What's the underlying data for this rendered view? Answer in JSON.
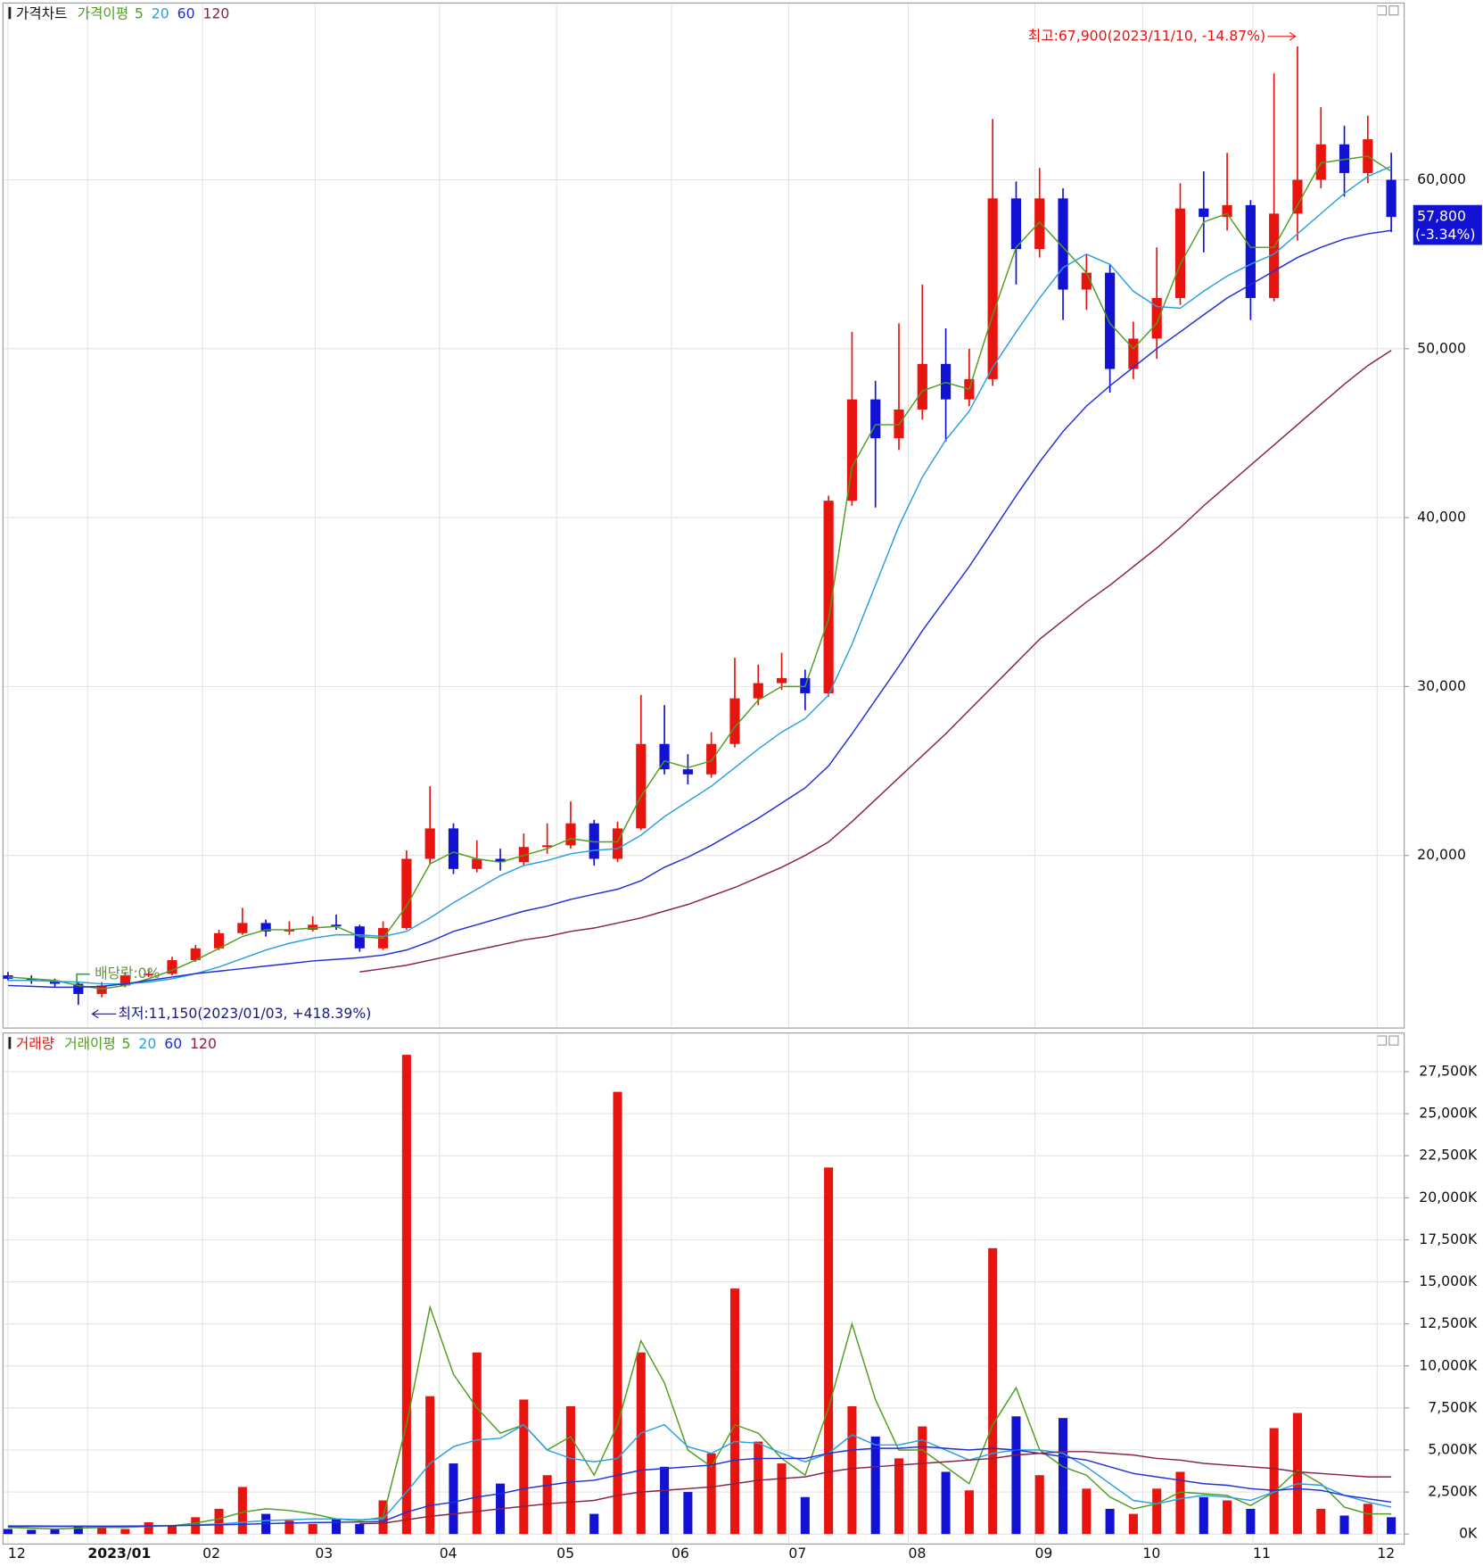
{
  "chart_data": [
    {
      "type": "candlestick",
      "title": "가격차트",
      "ma_title": "가격이평",
      "categories": [
        null,
        null,
        null,
        null,
        null,
        null,
        null,
        null,
        null,
        null,
        null,
        null,
        null,
        null,
        null,
        null,
        null,
        null,
        null,
        null,
        null,
        null,
        null,
        null,
        null,
        null,
        null,
        null,
        null,
        null,
        null,
        null,
        null,
        null,
        null,
        null,
        null,
        null,
        null,
        null,
        null,
        null,
        null,
        null,
        null,
        null,
        null,
        null,
        null,
        null,
        null,
        null,
        null,
        null,
        null,
        null,
        null,
        null,
        null,
        null
      ],
      "xticks": [
        {
          "value": 0,
          "label": "12"
        },
        {
          "value": 3.4,
          "label": "2023/01"
        },
        {
          "value": 8.3,
          "label": "02"
        },
        {
          "value": 13.1,
          "label": "03"
        },
        {
          "value": 18.4,
          "label": "04"
        },
        {
          "value": 23.4,
          "label": "05"
        },
        {
          "value": 28.3,
          "label": "06"
        },
        {
          "value": 33.3,
          "label": "07"
        },
        {
          "value": 38.4,
          "label": "08"
        },
        {
          "value": 43.8,
          "label": "09"
        },
        {
          "value": 48.4,
          "label": "10"
        },
        {
          "value": 53.1,
          "label": "11"
        },
        {
          "value": 58.4,
          "label": "12"
        }
      ],
      "ylim": [
        9900,
        70350
      ],
      "yticks": [
        {
          "value": 20000,
          "label": "20,000"
        },
        {
          "value": 30000,
          "label": "30,000"
        },
        {
          "value": 40000,
          "label": "40,000"
        },
        {
          "value": 50000,
          "label": "50,000"
        },
        {
          "value": 60000,
          "label": "60,000"
        }
      ],
      "grid": true,
      "up_color": "#e8140f",
      "down_color": "#1212d4",
      "open": [
        12900,
        12700,
        12600,
        12400,
        11800,
        12300,
        12900,
        13000,
        13800,
        14500,
        15400,
        16000,
        15500,
        15600,
        15900,
        15800,
        14500,
        15700,
        19800,
        21600,
        19200,
        19800,
        19600,
        20500,
        20600,
        21900,
        19800,
        21600,
        26600,
        25100,
        24800,
        26600,
        29300,
        30200,
        30500,
        29600,
        41000,
        47000,
        44700,
        46400,
        49100,
        47000,
        48200,
        58900,
        55900,
        58900,
        53500,
        54500,
        48800,
        50600,
        53000,
        58300,
        57800,
        58500,
        53000,
        58000,
        60000,
        62100,
        60400,
        60000
      ],
      "high": [
        13100,
        12900,
        12700,
        12500,
        12500,
        13100,
        13300,
        14000,
        14700,
        15600,
        16900,
        16200,
        16100,
        16400,
        16500,
        15900,
        16100,
        20300,
        24100,
        21900,
        20900,
        20400,
        21300,
        21900,
        23200,
        22100,
        22000,
        29500,
        28900,
        26000,
        27300,
        31700,
        31300,
        32000,
        31000,
        41300,
        51000,
        48100,
        51500,
        53800,
        51200,
        50000,
        63600,
        59900,
        60700,
        59500,
        55600,
        55000,
        51600,
        56000,
        59800,
        60500,
        61600,
        58800,
        66300,
        67900,
        64300,
        63200,
        63800,
        61600
      ],
      "low": [
        12600,
        12400,
        12200,
        11150,
        11600,
        12200,
        12800,
        12900,
        13700,
        14400,
        15300,
        15200,
        15300,
        15500,
        15600,
        14300,
        14400,
        15600,
        19500,
        18900,
        19000,
        19100,
        19400,
        20100,
        20400,
        19400,
        19600,
        21500,
        24800,
        24200,
        24600,
        26400,
        28900,
        29800,
        28600,
        29400,
        40700,
        40600,
        44000,
        45800,
        44500,
        46600,
        47800,
        53800,
        55400,
        51700,
        52300,
        47400,
        48200,
        49400,
        52600,
        55700,
        57000,
        51700,
        52800,
        56400,
        59500,
        59000,
        59800,
        56900
      ],
      "close": [
        12700,
        12600,
        12400,
        11800,
        12300,
        12900,
        13000,
        13800,
        14500,
        15400,
        16000,
        15500,
        15600,
        15900,
        15800,
        14500,
        15700,
        19800,
        21600,
        19200,
        19800,
        19600,
        20500,
        20600,
        21900,
        19800,
        21600,
        26600,
        25100,
        24800,
        26600,
        29300,
        30200,
        30500,
        29600,
        41000,
        47000,
        44700,
        46400,
        49100,
        47000,
        48200,
        58900,
        55900,
        58900,
        53500,
        54500,
        48800,
        50600,
        53000,
        58300,
        57800,
        58500,
        53000,
        58000,
        60000,
        62100,
        60400,
        62400,
        57800
      ],
      "moving_averages": [
        {
          "name": "5",
          "color": "#4f9e1c",
          "values": [
            12800,
            12700,
            12600,
            12300,
            12100,
            12300,
            12700,
            13200,
            13800,
            14500,
            15200,
            15600,
            15600,
            15700,
            15800,
            15200,
            15100,
            17000,
            19500,
            20200,
            19800,
            19600,
            20000,
            20400,
            21000,
            20800,
            20800,
            23500,
            25600,
            25200,
            25600,
            27600,
            29200,
            30000,
            30000,
            34000,
            43000,
            45500,
            45500,
            47500,
            48000,
            47600,
            52000,
            56000,
            57500,
            56000,
            54500,
            51500,
            50000,
            51500,
            55000,
            57500,
            58000,
            56000,
            56000,
            58500,
            61000,
            61200,
            61400,
            60500
          ]
        },
        {
          "name": "20",
          "color": "#2a9fe0",
          "values": [
            12600,
            12600,
            12550,
            12500,
            12400,
            12400,
            12500,
            12700,
            13000,
            13400,
            13900,
            14400,
            14800,
            15100,
            15300,
            15300,
            15200,
            15500,
            16300,
            17200,
            18000,
            18800,
            19400,
            19700,
            20100,
            20300,
            20400,
            21200,
            22300,
            23200,
            24100,
            25200,
            26300,
            27300,
            28100,
            29500,
            32500,
            36000,
            39500,
            42400,
            44600,
            46300,
            48900,
            51000,
            53000,
            54800,
            55600,
            55000,
            53400,
            52500,
            52400,
            53400,
            54300,
            55000,
            55600,
            56800,
            58000,
            59200,
            60200,
            60800
          ]
        },
        {
          "name": "60",
          "color": "#1f2fd6",
          "values": [
            12300,
            12250,
            12200,
            12200,
            12250,
            12400,
            12600,
            12800,
            13000,
            13150,
            13300,
            13450,
            13600,
            13750,
            13850,
            13950,
            14100,
            14400,
            14900,
            15500,
            15900,
            16300,
            16700,
            17000,
            17400,
            17700,
            18000,
            18500,
            19300,
            19900,
            20600,
            21400,
            22200,
            23100,
            24000,
            25300,
            27200,
            29200,
            31200,
            33300,
            35200,
            37100,
            39200,
            41300,
            43300,
            45100,
            46600,
            47800,
            48900,
            50000,
            51000,
            52000,
            53000,
            53800,
            54600,
            55400,
            56000,
            56500,
            56800,
            57000
          ]
        },
        {
          "name": "120",
          "color": "#8b2046",
          "values": [
            null,
            null,
            null,
            null,
            null,
            null,
            null,
            null,
            null,
            null,
            null,
            null,
            null,
            null,
            null,
            13100,
            13300,
            13500,
            13800,
            14100,
            14400,
            14700,
            15000,
            15200,
            15500,
            15700,
            16000,
            16300,
            16700,
            17100,
            17600,
            18100,
            18700,
            19300,
            20000,
            20800,
            22000,
            23300,
            24600,
            25900,
            27200,
            28600,
            30000,
            31400,
            32800,
            33900,
            35000,
            36000,
            37100,
            38200,
            39400,
            40700,
            41900,
            43100,
            44300,
            45500,
            46700,
            47900,
            49000,
            49900
          ]
        }
      ],
      "high_note": {
        "text": "최고:67,900(2023/11/10, -14.87%)",
        "value": 67900
      },
      "low_note": {
        "text": "최저:11,150(2023/01/03, +418.39%)",
        "value": 11150
      },
      "dividend_note": "배당락:0%",
      "last_price": {
        "value": 57800,
        "label": "57,800",
        "change": "(-3.34%)",
        "color": "#1212d4"
      }
    },
    {
      "type": "bar",
      "title": "거래량",
      "ma_title": "거래이평",
      "values": [
        300,
        250,
        300,
        500,
        400,
        300,
        700,
        500,
        1000,
        1500,
        2800,
        1200,
        800,
        600,
        900,
        600,
        2000,
        28500,
        8200,
        4200,
        10800,
        3000,
        8000,
        3500,
        7600,
        1200,
        26300,
        10800,
        4000,
        2500,
        4800,
        14600,
        5500,
        4200,
        2200,
        21800,
        7600,
        5800,
        4500,
        6400,
        3700,
        2600,
        17000,
        7000,
        3500,
        6900,
        2700,
        1500,
        1200,
        2700,
        3700,
        2200,
        2000,
        1500,
        6300,
        7200,
        1500,
        1100,
        1800,
        1000
      ],
      "ylim": [
        -475,
        29500
      ],
      "yticks": [
        {
          "value": 0,
          "label": "0K"
        },
        {
          "value": 2500,
          "label": "2,500K"
        },
        {
          "value": 5000,
          "label": "5,000K"
        },
        {
          "value": 7500,
          "label": "7,500K"
        },
        {
          "value": 10000,
          "label": "10,000K"
        },
        {
          "value": 12500,
          "label": "12,500K"
        },
        {
          "value": 15000,
          "label": "15,000K"
        },
        {
          "value": 17500,
          "label": "17,500K"
        },
        {
          "value": 20000,
          "label": "20,000K"
        },
        {
          "value": 22500,
          "label": "22,500K"
        },
        {
          "value": 25000,
          "label": "25,000K"
        },
        {
          "value": 27500,
          "label": "27,500K"
        }
      ],
      "grid": true,
      "up_color": "#e8140f",
      "down_color": "#1212d4",
      "moving_averages": [
        {
          "name": "5",
          "color": "#4f9e1c",
          "values": [
            400,
            350,
            300,
            350,
            400,
            400,
            450,
            500,
            650,
            900,
            1300,
            1500,
            1400,
            1200,
            900,
            800,
            1000,
            6500,
            13500,
            9500,
            7500,
            6000,
            6500,
            5000,
            5800,
            3500,
            6500,
            11500,
            9000,
            5000,
            4000,
            6500,
            6000,
            4500,
            3500,
            7500,
            12500,
            8000,
            5000,
            5000,
            4000,
            3000,
            6500,
            8700,
            5000,
            4000,
            3500,
            2200,
            1500,
            1800,
            2500,
            2400,
            2300,
            1700,
            2500,
            3800,
            3000,
            1600,
            1200,
            1200
          ]
        },
        {
          "name": "20",
          "color": "#2a9fe0",
          "values": [
            500,
            500,
            480,
            480,
            470,
            470,
            480,
            500,
            550,
            600,
            700,
            800,
            850,
            900,
            900,
            850,
            900,
            2500,
            4200,
            5200,
            5600,
            5700,
            6500,
            5000,
            4500,
            4300,
            4500,
            6000,
            6500,
            5200,
            4800,
            5500,
            5400,
            4800,
            4300,
            4800,
            5900,
            5300,
            5300,
            5600,
            5000,
            4400,
            4800,
            5000,
            5000,
            4800,
            4000,
            3000,
            2000,
            1800,
            2100,
            2300,
            2200,
            2000,
            2500,
            3000,
            2900,
            2300,
            1900,
            1600
          ]
        },
        {
          "name": "60",
          "color": "#1f2fd6",
          "values": [
            450,
            450,
            450,
            450,
            460,
            470,
            480,
            500,
            520,
            550,
            580,
            620,
            650,
            680,
            700,
            720,
            750,
            1300,
            1700,
            1900,
            2200,
            2400,
            2700,
            2900,
            3100,
            3200,
            3500,
            3800,
            3900,
            4000,
            4100,
            4400,
            4500,
            4500,
            4500,
            4800,
            5000,
            5100,
            5100,
            5200,
            5100,
            5000,
            5100,
            5000,
            4800,
            4600,
            4400,
            4000,
            3600,
            3400,
            3200,
            3000,
            2900,
            2700,
            2600,
            2700,
            2600,
            2300,
            2100,
            1900
          ]
        },
        {
          "name": "120",
          "color": "#8b2046",
          "values": [
            null,
            null,
            null,
            null,
            null,
            null,
            null,
            null,
            null,
            null,
            null,
            null,
            null,
            null,
            null,
            620,
            640,
            850,
            1050,
            1200,
            1350,
            1500,
            1650,
            1800,
            1900,
            2000,
            2300,
            2500,
            2600,
            2700,
            2800,
            3000,
            3200,
            3300,
            3400,
            3700,
            3900,
            4000,
            4100,
            4200,
            4300,
            4400,
            4500,
            4700,
            4800,
            4900,
            4900,
            4800,
            4700,
            4500,
            4400,
            4200,
            4100,
            4000,
            3900,
            3700,
            3600,
            3500,
            3400,
            3400
          ]
        }
      ]
    }
  ]
}
